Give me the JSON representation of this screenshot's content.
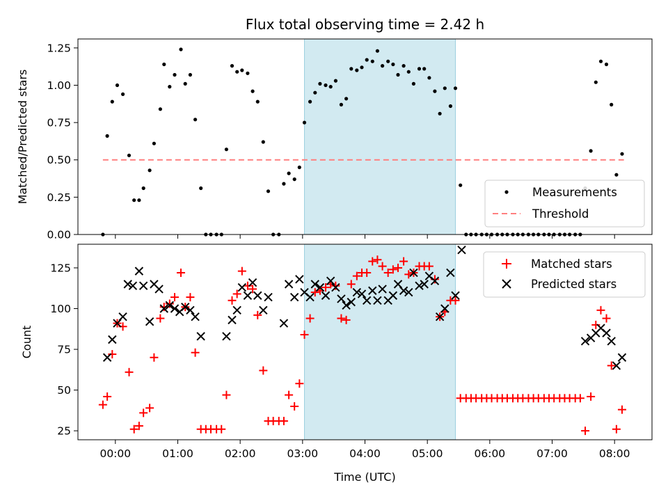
{
  "chart_data": [
    {
      "type": "scatter",
      "title": "Flux total observing time = 2.42 h",
      "ylabel": "Matched/Predicted stars",
      "xlim": [
        -0.6,
        8.6
      ],
      "ylim": [
        0.0,
        1.31
      ],
      "yticks": [
        "0.00",
        "0.25",
        "0.50",
        "0.75",
        "1.00",
        "1.25"
      ],
      "ytick_values": [
        0,
        0.25,
        0.5,
        0.75,
        1.0,
        1.25
      ],
      "highlight_span": [
        3.03,
        5.45
      ],
      "legend_position": "lower right",
      "threshold": {
        "name": "Threshold",
        "y": 0.5,
        "x_range": [
          -0.2,
          8.15
        ],
        "color": "#ff7f7f"
      },
      "series": [
        {
          "name": "Measurements",
          "color": "#000000",
          "marker": "dot",
          "x": [
            -0.2,
            -0.13,
            -0.05,
            0.03,
            0.12,
            0.22,
            0.3,
            0.38,
            0.45,
            0.55,
            0.62,
            0.72,
            0.78,
            0.87,
            0.95,
            1.05,
            1.12,
            1.2,
            1.28,
            1.37,
            1.45,
            1.53,
            1.62,
            1.7,
            1.78,
            1.87,
            1.95,
            2.03,
            2.12,
            2.2,
            2.28,
            2.37,
            2.45,
            2.53,
            2.62,
            2.7,
            2.78,
            2.87,
            2.95,
            3.03,
            3.12,
            3.2,
            3.28,
            3.37,
            3.45,
            3.53,
            3.62,
            3.7,
            3.78,
            3.87,
            3.95,
            4.03,
            4.12,
            4.2,
            4.28,
            4.37,
            4.45,
            4.53,
            4.62,
            4.7,
            4.78,
            4.87,
            4.95,
            5.03,
            5.12,
            5.2,
            5.28,
            5.37,
            5.45,
            5.53,
            5.62,
            5.7,
            5.78,
            5.87,
            5.95,
            6.03,
            6.12,
            6.2,
            6.28,
            6.37,
            6.45,
            6.53,
            6.62,
            6.7,
            6.78,
            6.87,
            6.95,
            7.03,
            7.12,
            7.2,
            7.28,
            7.37,
            7.45,
            7.53,
            7.62,
            7.7,
            7.78,
            7.87,
            7.95,
            8.03,
            8.12
          ],
          "y": [
            0.0,
            0.66,
            0.89,
            1.0,
            0.94,
            0.53,
            0.23,
            0.23,
            0.31,
            0.43,
            0.61,
            0.84,
            1.14,
            0.99,
            1.07,
            1.24,
            1.01,
            1.07,
            0.77,
            0.31,
            0.0,
            0.0,
            0.0,
            0.0,
            0.57,
            1.13,
            1.09,
            1.1,
            1.08,
            0.96,
            0.89,
            0.62,
            0.29,
            0.0,
            0.0,
            0.34,
            0.41,
            0.37,
            0.45,
            0.75,
            0.89,
            0.95,
            1.01,
            1.0,
            0.99,
            1.03,
            0.87,
            0.91,
            1.11,
            1.1,
            1.12,
            1.17,
            1.16,
            1.23,
            1.13,
            1.16,
            1.14,
            1.07,
            1.13,
            1.09,
            1.01,
            1.11,
            1.11,
            1.05,
            0.96,
            0.81,
            0.98,
            0.86,
            0.98,
            0.33,
            0.0,
            0.0,
            0.0,
            0.0,
            0.0,
            0.0,
            0.0,
            0.0,
            0.0,
            0.0,
            0.0,
            0.0,
            0.0,
            0.0,
            0.0,
            0.0,
            0.0,
            0.0,
            0.0,
            0.0,
            0.0,
            0.0,
            0.0,
            0.31,
            0.56,
            1.02,
            1.16,
            1.14,
            0.87,
            0.4,
            0.54
          ]
        }
      ]
    },
    {
      "type": "scatter",
      "xlabel": "Time (UTC)",
      "ylabel": "Count",
      "xlim": [
        -0.6,
        8.6
      ],
      "ylim": [
        19.5,
        139.5
      ],
      "xticks": [
        "00:00",
        "01:00",
        "02:00",
        "03:00",
        "04:00",
        "05:00",
        "06:00",
        "07:00",
        "08:00"
      ],
      "xtick_values": [
        0,
        1,
        2,
        3,
        4,
        5,
        6,
        7,
        8
      ],
      "yticks": [
        "25",
        "50",
        "75",
        "100",
        "125"
      ],
      "ytick_values": [
        25,
        50,
        75,
        100,
        125
      ],
      "highlight_span": [
        3.03,
        5.45
      ],
      "legend_position": "upper right",
      "series": [
        {
          "name": "Matched stars",
          "color": "#ff0000",
          "marker": "plus",
          "x": [
            -0.2,
            -0.13,
            -0.05,
            0.03,
            0.12,
            0.22,
            0.3,
            0.38,
            0.45,
            0.55,
            0.62,
            0.72,
            0.78,
            0.87,
            0.95,
            1.05,
            1.12,
            1.2,
            1.28,
            1.37,
            1.45,
            1.53,
            1.62,
            1.7,
            1.78,
            1.87,
            1.95,
            2.03,
            2.12,
            2.2,
            2.28,
            2.37,
            2.45,
            2.53,
            2.62,
            2.7,
            2.78,
            2.87,
            2.95,
            3.03,
            3.12,
            3.2,
            3.28,
            3.37,
            3.45,
            3.53,
            3.62,
            3.7,
            3.78,
            3.87,
            3.95,
            4.03,
            4.12,
            4.2,
            4.28,
            4.37,
            4.45,
            4.53,
            4.62,
            4.7,
            4.78,
            4.87,
            4.95,
            5.03,
            5.12,
            5.2,
            5.28,
            5.37,
            5.45,
            5.53,
            5.62,
            5.7,
            5.78,
            5.87,
            5.95,
            6.03,
            6.12,
            6.2,
            6.28,
            6.37,
            6.45,
            6.53,
            6.62,
            6.7,
            6.78,
            6.87,
            6.95,
            7.03,
            7.12,
            7.2,
            7.28,
            7.37,
            7.45,
            7.53,
            7.62,
            7.7,
            7.78,
            7.87,
            7.95,
            8.03,
            8.12
          ],
          "y": [
            41,
            46,
            72,
            91,
            89,
            61,
            26,
            28,
            36,
            39,
            70,
            94,
            101,
            103,
            107,
            122,
            101,
            107,
            73,
            26,
            26,
            26,
            26,
            26,
            47,
            105,
            109,
            123,
            114,
            112,
            96,
            62,
            31,
            31,
            31,
            31,
            47,
            40,
            54,
            84,
            94,
            110,
            111,
            113,
            115,
            114,
            94,
            93,
            115,
            120,
            122,
            122,
            129,
            130,
            126,
            122,
            124,
            125,
            129,
            121,
            122,
            126,
            126,
            126,
            118,
            95,
            98,
            105,
            105,
            45,
            45,
            45,
            45,
            45,
            45,
            45,
            45,
            45,
            45,
            45,
            45,
            45,
            45,
            45,
            45,
            45,
            45,
            45,
            45,
            45,
            45,
            45,
            45,
            25,
            46,
            90,
            99,
            94,
            65,
            26,
            38
          ]
        },
        {
          "name": "Predicted stars",
          "color": "#000000",
          "marker": "x",
          "x": [
            -0.13,
            -0.05,
            0.03,
            0.12,
            0.2,
            0.28,
            0.38,
            0.45,
            0.55,
            0.62,
            0.7,
            0.78,
            0.87,
            0.95,
            1.03,
            1.12,
            1.2,
            1.28,
            1.37,
            1.78,
            1.87,
            1.95,
            2.03,
            2.12,
            2.2,
            2.28,
            2.37,
            2.45,
            2.7,
            2.78,
            2.87,
            2.95,
            3.03,
            3.12,
            3.2,
            3.28,
            3.37,
            3.45,
            3.53,
            3.62,
            3.7,
            3.78,
            3.87,
            3.95,
            4.03,
            4.12,
            4.2,
            4.28,
            4.37,
            4.45,
            4.53,
            4.62,
            4.7,
            4.78,
            4.87,
            4.95,
            5.03,
            5.12,
            5.2,
            5.28,
            5.37,
            5.45,
            5.55,
            7.53,
            7.62,
            7.7,
            7.78,
            7.87,
            7.95,
            8.03,
            8.12
          ],
          "y": [
            70,
            81,
            91,
            95,
            115,
            114,
            123,
            114,
            92,
            115,
            112,
            100,
            102,
            100,
            98,
            101,
            99,
            95,
            83,
            83,
            93,
            99,
            113,
            108,
            116,
            108,
            99,
            107,
            91,
            115,
            107,
            118,
            110,
            107,
            115,
            113,
            108,
            117,
            113,
            106,
            102,
            104,
            110,
            109,
            105,
            111,
            105,
            112,
            105,
            108,
            115,
            111,
            110,
            122,
            114,
            115,
            120,
            117,
            95,
            100,
            122,
            108,
            136,
            80,
            82,
            85,
            88,
            85,
            80,
            65,
            70
          ]
        }
      ]
    }
  ]
}
